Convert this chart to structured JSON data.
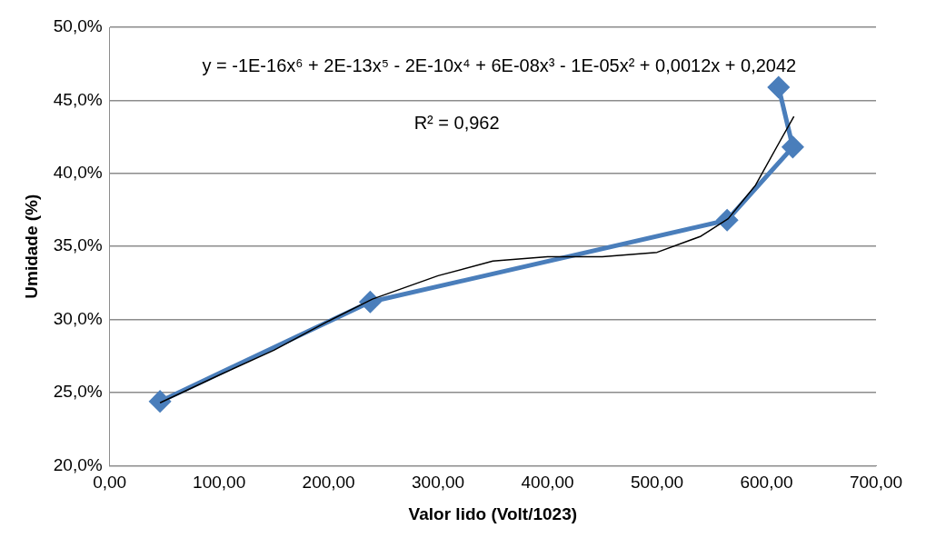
{
  "chart_data": {
    "type": "line",
    "xlabel": "Valor lido (Volt/1023)",
    "ylabel": "Umidade (%)",
    "series": [
      {
        "color": "#4a7ebb",
        "x": [
          46,
          238,
          564,
          624,
          611
        ],
        "values": [
          24.4,
          31.2,
          36.8,
          41.8,
          45.9
        ],
        "marker": "diamond"
      },
      {
        "color": "#000000",
        "x": [
          46,
          100,
          150,
          200,
          240,
          300,
          350,
          400,
          450,
          500,
          540,
          565,
          590,
          610,
          625
        ],
        "values": [
          24.3,
          26.2,
          27.9,
          29.9,
          31.4,
          33.0,
          34.0,
          34.3,
          34.3,
          34.6,
          35.7,
          36.9,
          39.2,
          41.9,
          43.9
        ],
        "marker": "none"
      }
    ],
    "xlim": [
      0,
      700
    ],
    "xticks": [
      {
        "value": 0,
        "label": "0,00"
      },
      {
        "value": 100,
        "label": "100,00"
      },
      {
        "value": 200,
        "label": "200,00"
      },
      {
        "value": 300,
        "label": "300,00"
      },
      {
        "value": 400,
        "label": "400,00"
      },
      {
        "value": 500,
        "label": "500,00"
      },
      {
        "value": 600,
        "label": "600,00"
      },
      {
        "value": 700,
        "label": "700,00"
      }
    ],
    "ylim": [
      20,
      50
    ],
    "yticks": [
      {
        "value": 20,
        "label": "20,0%"
      },
      {
        "value": 25,
        "label": "25,0%"
      },
      {
        "value": 30,
        "label": "30,0%"
      },
      {
        "value": 35,
        "label": "35,0%"
      },
      {
        "value": 40,
        "label": "40,0%"
      },
      {
        "value": 45,
        "label": "45,0%"
      },
      {
        "value": 50,
        "label": "50,0%"
      }
    ],
    "grid": "y",
    "legend": false,
    "annotations": [
      "y = -1E-16x⁶ + 2E-13x⁵ - 2E-10x⁴ + 6E-08x³ - 1E-05x² + 0,0012x + 0,2042",
      "R² = 0,962"
    ]
  }
}
